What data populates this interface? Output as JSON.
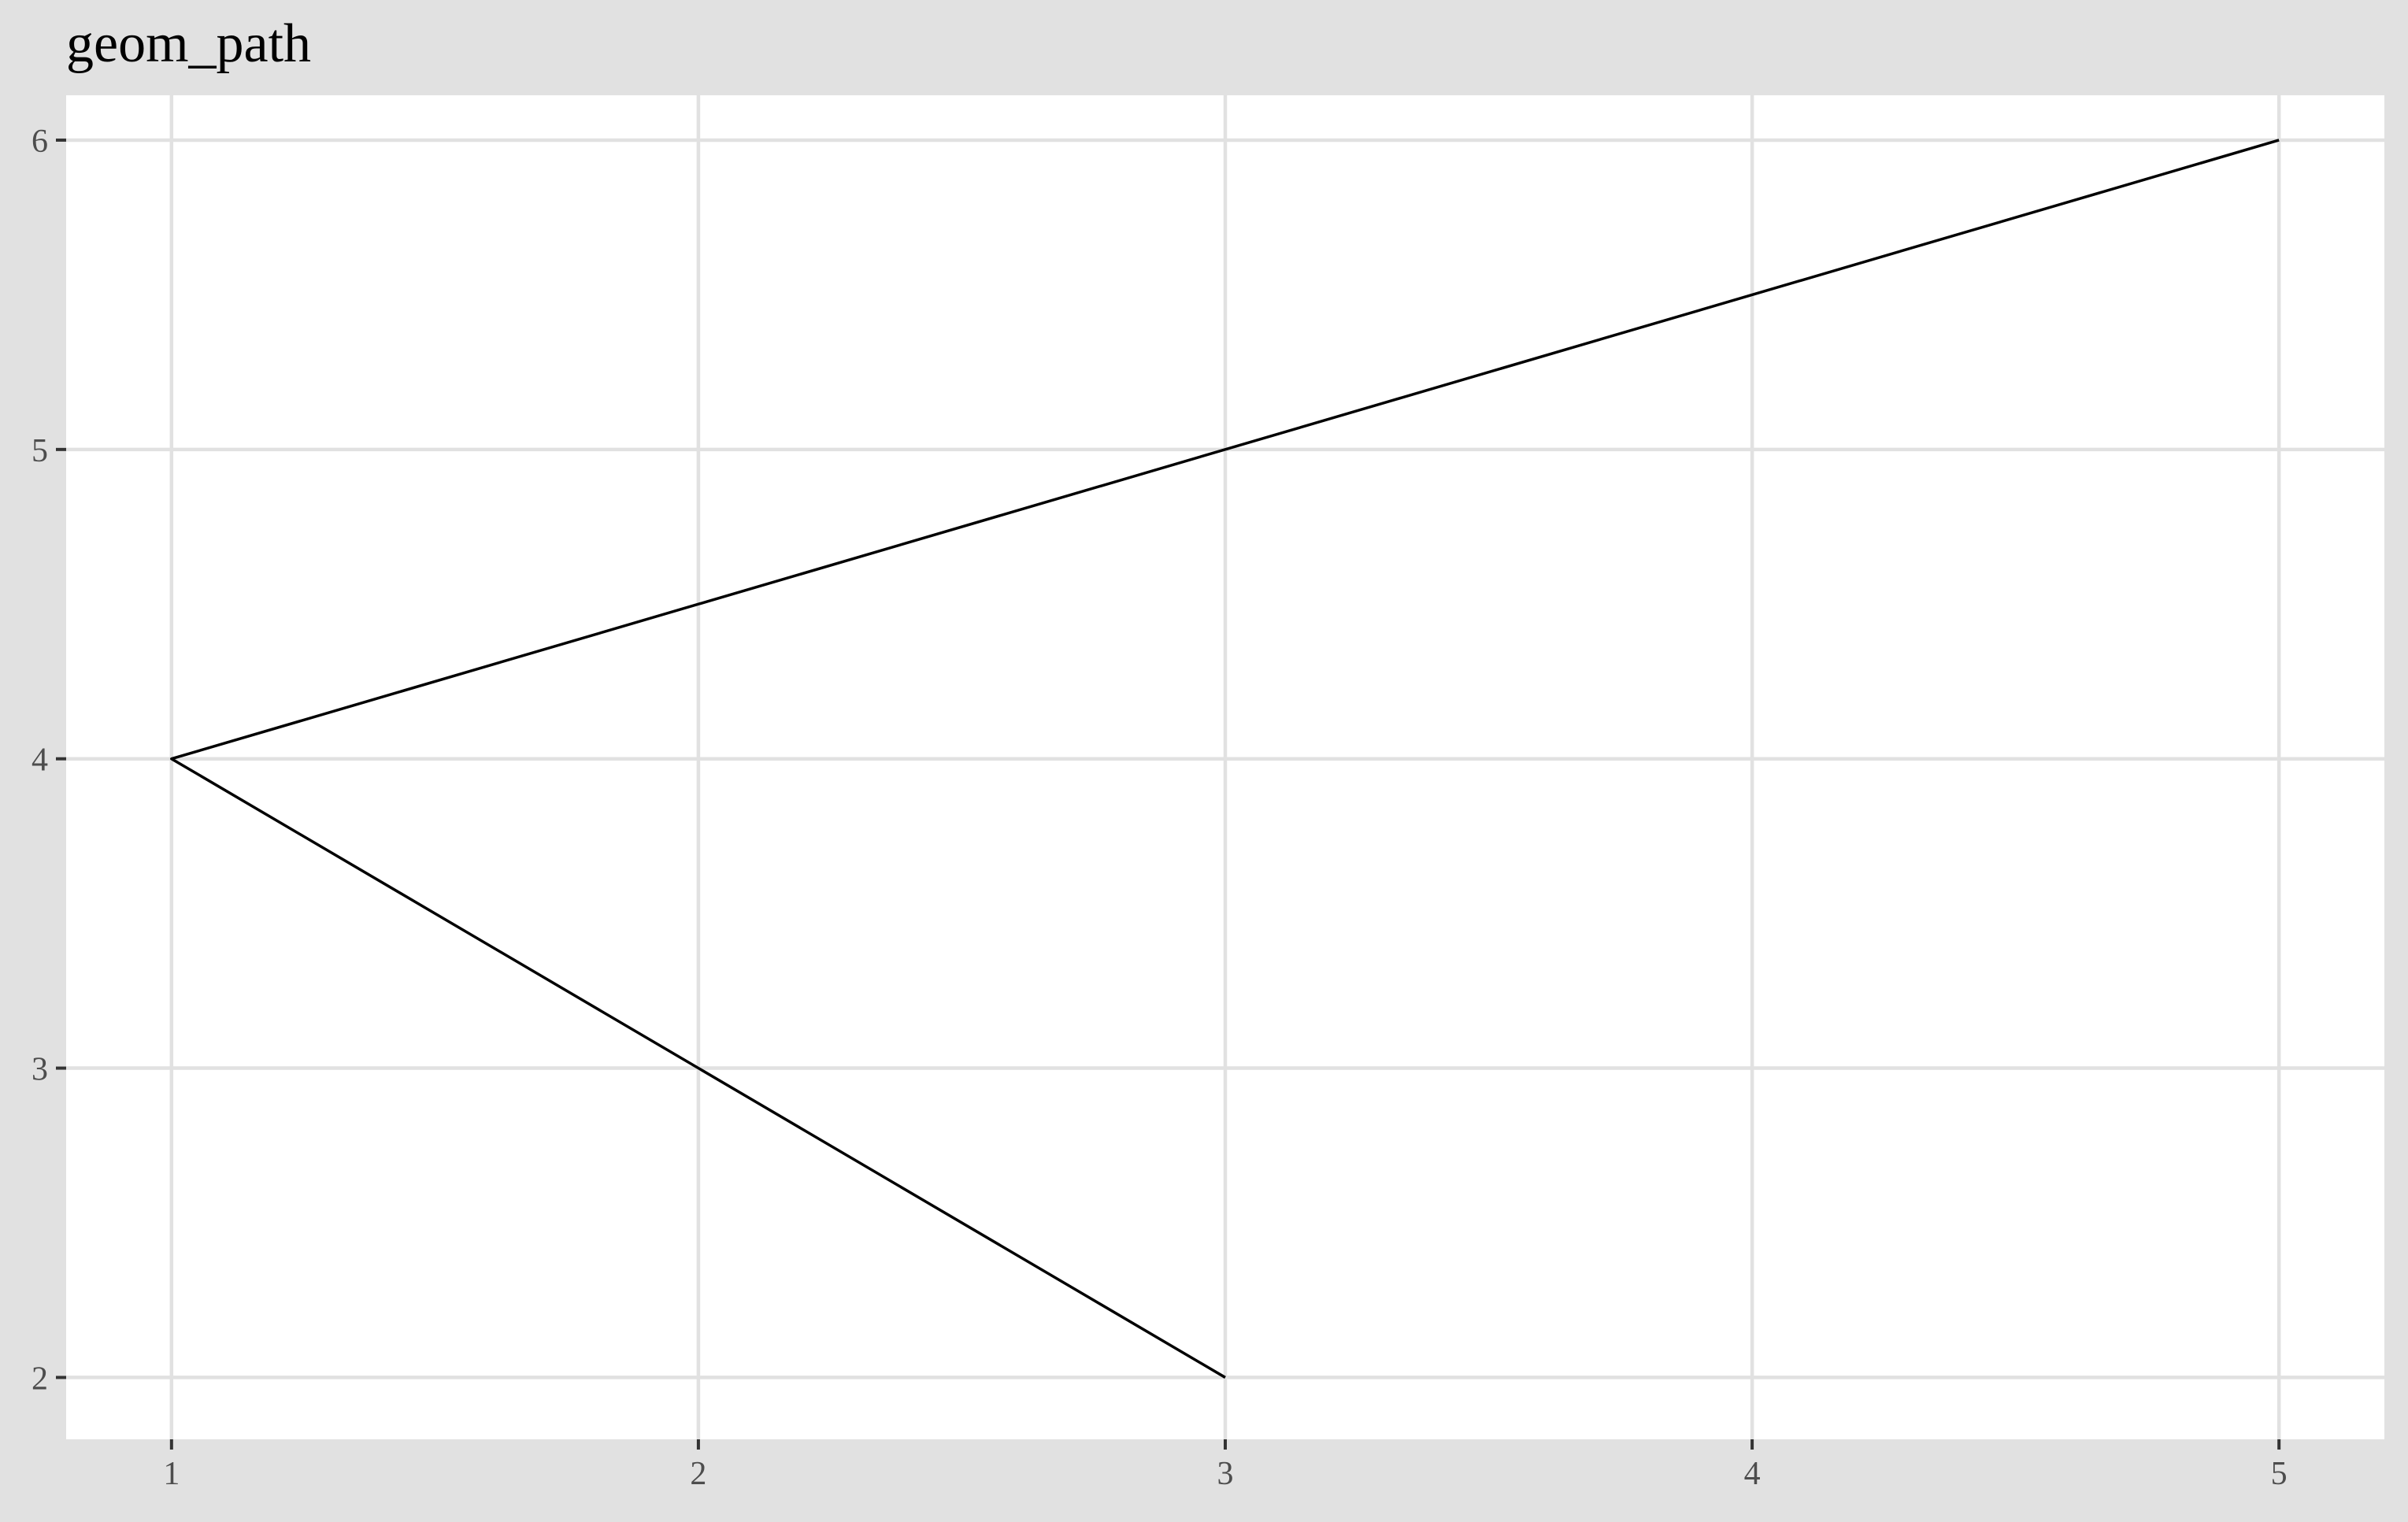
{
  "chart_data": {
    "type": "line",
    "title": "geom_path",
    "xlabel": "",
    "ylabel": "",
    "x_ticks": [
      1,
      2,
      3,
      4,
      5
    ],
    "y_ticks": [
      2,
      3,
      4,
      5,
      6
    ],
    "xlim": [
      0.8,
      5.2
    ],
    "ylim": [
      1.8,
      6.145
    ],
    "grid": true,
    "series": [
      {
        "x": [
          3,
          1,
          5
        ],
        "y": [
          2,
          4,
          6
        ]
      }
    ]
  },
  "colors": {
    "background": "#e1e1e1",
    "panel": "#ffffff",
    "grid": "#e1e1e1",
    "line": "#000000",
    "tick_label": "#4d4d4d",
    "tick_mark": "#333333"
  }
}
